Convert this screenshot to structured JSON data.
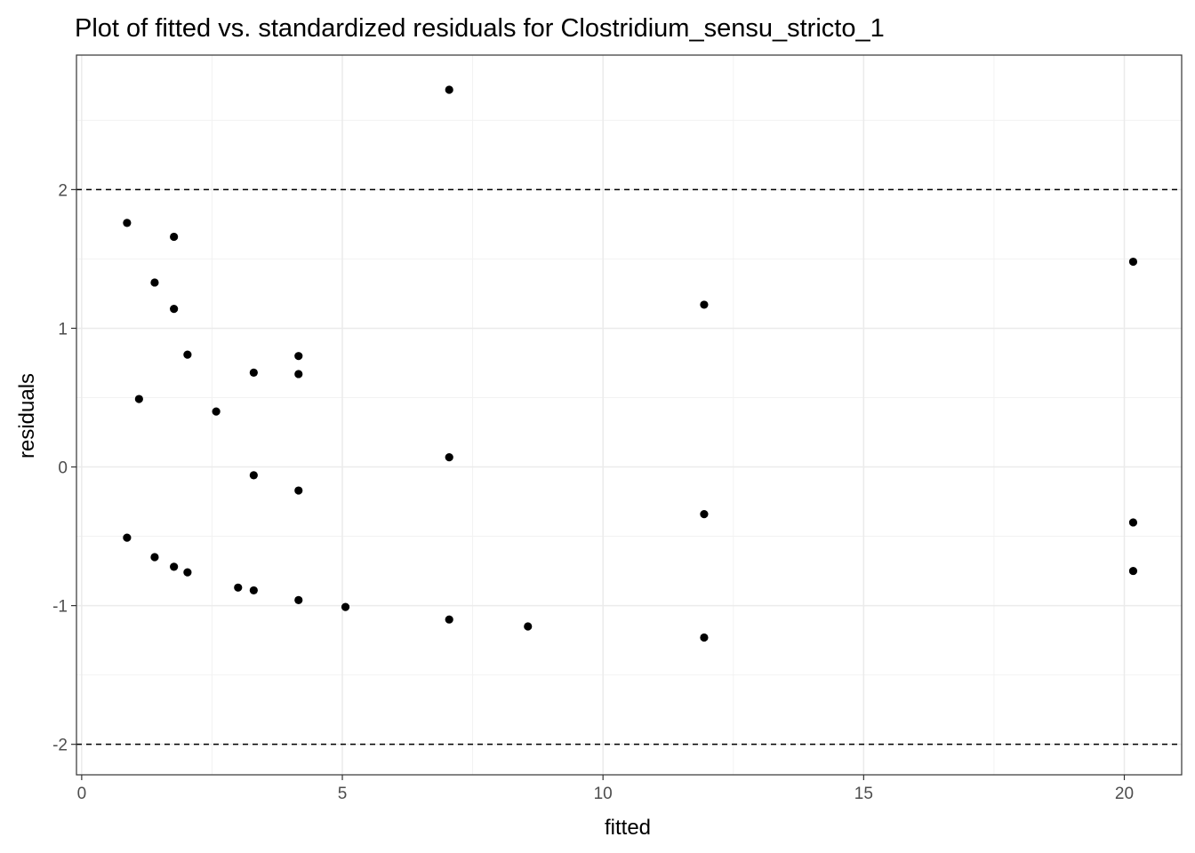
{
  "chart_data": {
    "type": "scatter",
    "title": "Plot of fitted vs. standardized residuals for Clostridium_sensu_stricto_1",
    "xlabel": "fitted",
    "ylabel": "residuals",
    "xlim": [
      -0.1,
      21.1
    ],
    "ylim": [
      -2.22,
      2.97
    ],
    "x_ticks": [
      0,
      5,
      10,
      15,
      20
    ],
    "x_tick_labels": [
      "0",
      "5",
      "10",
      "15",
      "20"
    ],
    "y_ticks": [
      -2,
      -1,
      0,
      1,
      2
    ],
    "y_tick_labels": [
      "-2",
      "-1",
      "0",
      "1",
      "2"
    ],
    "grid": true,
    "reference_lines": [
      2,
      -2
    ],
    "reference_line_style": "dashed",
    "point_color": "#000000",
    "series": [
      {
        "points": [
          {
            "x": 0.87,
            "y": 1.76
          },
          {
            "x": 0.87,
            "y": -0.51
          },
          {
            "x": 1.1,
            "y": 0.49
          },
          {
            "x": 1.4,
            "y": 1.33
          },
          {
            "x": 1.4,
            "y": -0.65
          },
          {
            "x": 1.77,
            "y": 1.66
          },
          {
            "x": 1.77,
            "y": 1.14
          },
          {
            "x": 1.77,
            "y": -0.72
          },
          {
            "x": 2.03,
            "y": 0.81
          },
          {
            "x": 2.03,
            "y": -0.76
          },
          {
            "x": 2.58,
            "y": 0.4
          },
          {
            "x": 3.0,
            "y": -0.87
          },
          {
            "x": 3.3,
            "y": 0.68
          },
          {
            "x": 3.3,
            "y": -0.06
          },
          {
            "x": 3.3,
            "y": -0.89
          },
          {
            "x": 4.16,
            "y": 0.8
          },
          {
            "x": 4.16,
            "y": 0.67
          },
          {
            "x": 4.16,
            "y": -0.17
          },
          {
            "x": 4.16,
            "y": -0.96
          },
          {
            "x": 5.06,
            "y": -1.01
          },
          {
            "x": 7.05,
            "y": 2.72
          },
          {
            "x": 7.05,
            "y": 0.07
          },
          {
            "x": 7.05,
            "y": -1.1
          },
          {
            "x": 8.56,
            "y": -1.15
          },
          {
            "x": 11.94,
            "y": 1.17
          },
          {
            "x": 11.94,
            "y": -0.34
          },
          {
            "x": 11.94,
            "y": -1.23
          },
          {
            "x": 20.17,
            "y": 1.48
          },
          {
            "x": 20.17,
            "y": -0.4
          },
          {
            "x": 20.17,
            "y": -0.75
          }
        ]
      }
    ]
  }
}
